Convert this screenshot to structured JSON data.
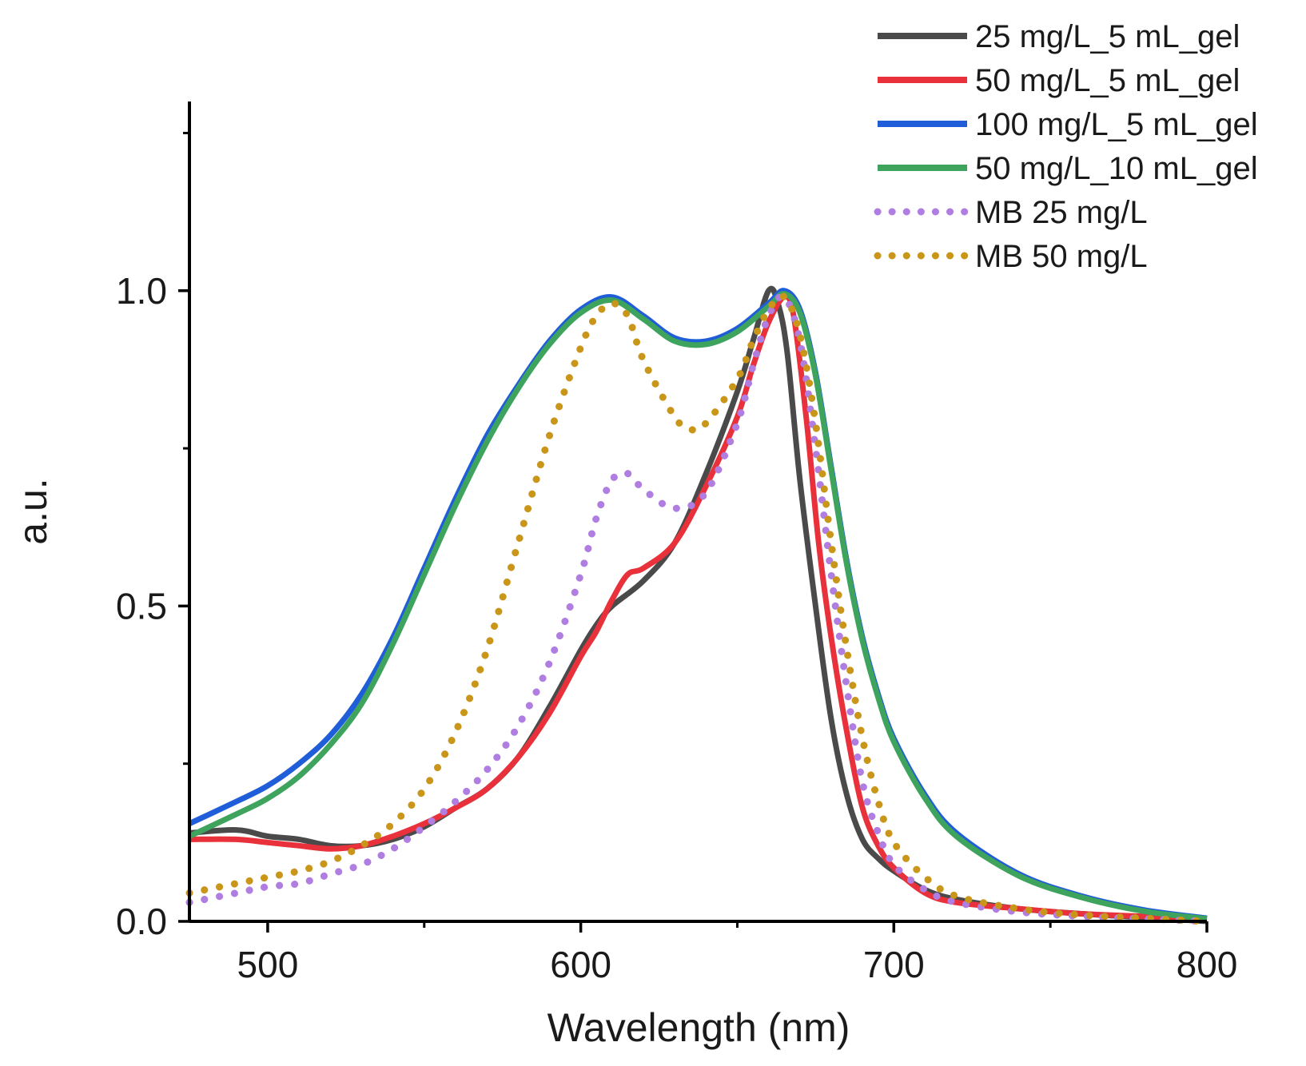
{
  "chart_data": {
    "type": "line",
    "title": "",
    "xlabel": "Wavelength (nm)",
    "ylabel": "a.u.",
    "xlim": [
      475,
      800
    ],
    "ylim": [
      0,
      1.3
    ],
    "xticks": [
      500,
      600,
      700,
      800
    ],
    "xtick_labels": [
      "500",
      "600",
      "700",
      "800"
    ],
    "yticks": [
      0,
      0.5,
      1.0
    ],
    "ytick_labels": [
      "0.0",
      "0.5",
      "1.0"
    ],
    "grid": false,
    "legend_position": "top-right",
    "series": [
      {
        "name": "25 mg/L_5 mL_gel",
        "color": "#4a4a4a",
        "style": "solid",
        "points": [
          [
            475,
            0.14
          ],
          [
            490,
            0.145
          ],
          [
            500,
            0.135
          ],
          [
            510,
            0.13
          ],
          [
            520,
            0.12
          ],
          [
            530,
            0.12
          ],
          [
            540,
            0.13
          ],
          [
            550,
            0.15
          ],
          [
            560,
            0.18
          ],
          [
            570,
            0.21
          ],
          [
            580,
            0.26
          ],
          [
            590,
            0.34
          ],
          [
            600,
            0.43
          ],
          [
            605,
            0.47
          ],
          [
            610,
            0.5
          ],
          [
            620,
            0.54
          ],
          [
            630,
            0.6
          ],
          [
            640,
            0.71
          ],
          [
            650,
            0.84
          ],
          [
            655,
            0.92
          ],
          [
            660,
            1.0
          ],
          [
            663,
            0.98
          ],
          [
            666,
            0.9
          ],
          [
            670,
            0.7
          ],
          [
            675,
            0.5
          ],
          [
            680,
            0.32
          ],
          [
            685,
            0.2
          ],
          [
            690,
            0.13
          ],
          [
            695,
            0.1
          ],
          [
            700,
            0.08
          ],
          [
            710,
            0.05
          ],
          [
            720,
            0.035
          ],
          [
            740,
            0.02
          ],
          [
            760,
            0.012
          ],
          [
            780,
            0.006
          ],
          [
            800,
            0.0
          ]
        ]
      },
      {
        "name": "50 mg/L_5 mL_gel",
        "color": "#e8313a",
        "style": "solid",
        "points": [
          [
            475,
            0.13
          ],
          [
            490,
            0.13
          ],
          [
            500,
            0.125
          ],
          [
            510,
            0.12
          ],
          [
            520,
            0.115
          ],
          [
            530,
            0.12
          ],
          [
            540,
            0.135
          ],
          [
            550,
            0.155
          ],
          [
            560,
            0.18
          ],
          [
            570,
            0.21
          ],
          [
            580,
            0.26
          ],
          [
            590,
            0.33
          ],
          [
            600,
            0.42
          ],
          [
            605,
            0.46
          ],
          [
            610,
            0.51
          ],
          [
            615,
            0.55
          ],
          [
            620,
            0.56
          ],
          [
            630,
            0.6
          ],
          [
            640,
            0.69
          ],
          [
            650,
            0.8
          ],
          [
            655,
            0.88
          ],
          [
            660,
            0.95
          ],
          [
            665,
            0.99
          ],
          [
            668,
            0.96
          ],
          [
            672,
            0.8
          ],
          [
            676,
            0.6
          ],
          [
            680,
            0.45
          ],
          [
            685,
            0.3
          ],
          [
            690,
            0.18
          ],
          [
            695,
            0.12
          ],
          [
            700,
            0.085
          ],
          [
            710,
            0.045
          ],
          [
            720,
            0.03
          ],
          [
            740,
            0.02
          ],
          [
            760,
            0.012
          ],
          [
            780,
            0.008
          ],
          [
            800,
            0.005
          ]
        ]
      },
      {
        "name": "100 mg/L_5 mL_gel",
        "color": "#1f5ed8",
        "style": "solid",
        "points": [
          [
            475,
            0.155
          ],
          [
            490,
            0.19
          ],
          [
            500,
            0.215
          ],
          [
            510,
            0.25
          ],
          [
            520,
            0.295
          ],
          [
            530,
            0.36
          ],
          [
            540,
            0.45
          ],
          [
            550,
            0.56
          ],
          [
            560,
            0.67
          ],
          [
            570,
            0.77
          ],
          [
            580,
            0.85
          ],
          [
            590,
            0.92
          ],
          [
            600,
            0.97
          ],
          [
            610,
            0.99
          ],
          [
            620,
            0.96
          ],
          [
            630,
            0.925
          ],
          [
            640,
            0.92
          ],
          [
            650,
            0.94
          ],
          [
            660,
            0.98
          ],
          [
            665,
            1.0
          ],
          [
            670,
            0.97
          ],
          [
            675,
            0.87
          ],
          [
            680,
            0.72
          ],
          [
            685,
            0.57
          ],
          [
            690,
            0.45
          ],
          [
            695,
            0.36
          ],
          [
            700,
            0.29
          ],
          [
            710,
            0.2
          ],
          [
            720,
            0.14
          ],
          [
            740,
            0.075
          ],
          [
            760,
            0.04
          ],
          [
            780,
            0.018
          ],
          [
            800,
            0.005
          ]
        ]
      },
      {
        "name": "50 mg/L_10 mL_gel",
        "color": "#3da35d",
        "style": "solid",
        "points": [
          [
            475,
            0.135
          ],
          [
            490,
            0.17
          ],
          [
            500,
            0.195
          ],
          [
            510,
            0.23
          ],
          [
            520,
            0.28
          ],
          [
            530,
            0.345
          ],
          [
            540,
            0.44
          ],
          [
            550,
            0.55
          ],
          [
            560,
            0.66
          ],
          [
            570,
            0.76
          ],
          [
            580,
            0.845
          ],
          [
            590,
            0.915
          ],
          [
            600,
            0.965
          ],
          [
            610,
            0.985
          ],
          [
            620,
            0.955
          ],
          [
            630,
            0.92
          ],
          [
            640,
            0.915
          ],
          [
            650,
            0.935
          ],
          [
            660,
            0.975
          ],
          [
            665,
            0.995
          ],
          [
            670,
            0.965
          ],
          [
            675,
            0.865
          ],
          [
            680,
            0.715
          ],
          [
            685,
            0.565
          ],
          [
            690,
            0.445
          ],
          [
            695,
            0.355
          ],
          [
            700,
            0.285
          ],
          [
            710,
            0.195
          ],
          [
            720,
            0.135
          ],
          [
            740,
            0.072
          ],
          [
            760,
            0.038
          ],
          [
            780,
            0.016
          ],
          [
            800,
            0.004
          ]
        ]
      },
      {
        "name": "MB 25 mg/L",
        "color": "#b07de0",
        "style": "dotted",
        "points": [
          [
            475,
            0.03
          ],
          [
            490,
            0.045
          ],
          [
            500,
            0.055
          ],
          [
            510,
            0.06
          ],
          [
            520,
            0.075
          ],
          [
            530,
            0.09
          ],
          [
            540,
            0.115
          ],
          [
            550,
            0.15
          ],
          [
            560,
            0.19
          ],
          [
            570,
            0.24
          ],
          [
            580,
            0.31
          ],
          [
            590,
            0.41
          ],
          [
            600,
            0.55
          ],
          [
            605,
            0.64
          ],
          [
            610,
            0.7
          ],
          [
            615,
            0.71
          ],
          [
            620,
            0.685
          ],
          [
            630,
            0.655
          ],
          [
            640,
            0.68
          ],
          [
            650,
            0.79
          ],
          [
            655,
            0.88
          ],
          [
            660,
            0.96
          ],
          [
            665,
            0.99
          ],
          [
            670,
            0.92
          ],
          [
            675,
            0.75
          ],
          [
            680,
            0.55
          ],
          [
            685,
            0.37
          ],
          [
            690,
            0.22
          ],
          [
            695,
            0.14
          ],
          [
            700,
            0.09
          ],
          [
            710,
            0.05
          ],
          [
            720,
            0.03
          ],
          [
            740,
            0.015
          ],
          [
            760,
            0.008
          ],
          [
            780,
            0.004
          ],
          [
            800,
            0.0
          ]
        ]
      },
      {
        "name": "MB 50 mg/L",
        "color": "#c9961a",
        "style": "dotted",
        "points": [
          [
            475,
            0.045
          ],
          [
            490,
            0.06
          ],
          [
            500,
            0.07
          ],
          [
            510,
            0.08
          ],
          [
            520,
            0.095
          ],
          [
            530,
            0.12
          ],
          [
            540,
            0.155
          ],
          [
            550,
            0.21
          ],
          [
            560,
            0.3
          ],
          [
            570,
            0.43
          ],
          [
            580,
            0.6
          ],
          [
            590,
            0.77
          ],
          [
            600,
            0.91
          ],
          [
            605,
            0.96
          ],
          [
            610,
            0.98
          ],
          [
            615,
            0.96
          ],
          [
            620,
            0.89
          ],
          [
            630,
            0.8
          ],
          [
            635,
            0.78
          ],
          [
            640,
            0.79
          ],
          [
            650,
            0.86
          ],
          [
            655,
            0.92
          ],
          [
            660,
            0.97
          ],
          [
            665,
            0.99
          ],
          [
            670,
            0.93
          ],
          [
            675,
            0.79
          ],
          [
            680,
            0.6
          ],
          [
            685,
            0.43
          ],
          [
            690,
            0.29
          ],
          [
            695,
            0.19
          ],
          [
            700,
            0.125
          ],
          [
            710,
            0.07
          ],
          [
            720,
            0.04
          ],
          [
            740,
            0.02
          ],
          [
            760,
            0.01
          ],
          [
            780,
            0.005
          ],
          [
            800,
            0.0
          ]
        ]
      }
    ]
  }
}
